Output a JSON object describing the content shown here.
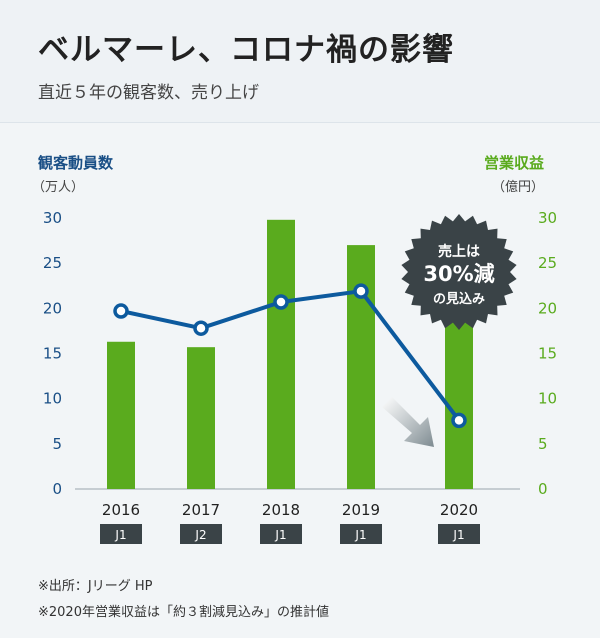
{
  "header": {
    "title": "ベルマーレ、コロナ禍の影響",
    "subtitle": "直近５年の観客数、売り上げ"
  },
  "axes": {
    "left_title": "観客動員数",
    "left_unit": "（万人）",
    "right_title": "営業収益",
    "right_unit": "（億円）"
  },
  "burst": {
    "line1": "売上は",
    "line2": "30%減",
    "line3": "の見込み"
  },
  "notes": {
    "source": "※出所：Jリーグ HP",
    "footnote": "※2020年営業収益は「約３割減見込み」の推計値"
  },
  "colors": {
    "bar": "#5aab1e",
    "line": "#0d5a9e",
    "left_axis": "#1a4f86",
    "right_axis": "#5aab1e",
    "badge": "#3a4347",
    "burst": "#3a4347"
  },
  "chart_data": {
    "type": "bar+line",
    "categories": [
      "2016",
      "2017",
      "2018",
      "2019",
      "2020"
    ],
    "divisions": [
      "J1",
      "J2",
      "J1",
      "J1",
      "J1"
    ],
    "series": [
      {
        "name": "営業収益",
        "axis": "right",
        "kind": "bar",
        "values": [
          16.3,
          15.7,
          29.8,
          27.0,
          18.9
        ]
      },
      {
        "name": "観客動員数",
        "axis": "left",
        "kind": "line",
        "values": [
          19.7,
          17.8,
          20.7,
          21.9,
          7.6
        ]
      }
    ],
    "left_axis": {
      "label": "観客動員数",
      "unit": "（万人）",
      "ylim": [
        0,
        30
      ],
      "ticks": [
        0,
        5,
        10,
        15,
        20,
        25,
        30
      ]
    },
    "right_axis": {
      "label": "営業収益",
      "unit": "（億円）",
      "ylim": [
        0,
        30
      ],
      "ticks": [
        0,
        5,
        10,
        15,
        20,
        25,
        30
      ]
    }
  }
}
